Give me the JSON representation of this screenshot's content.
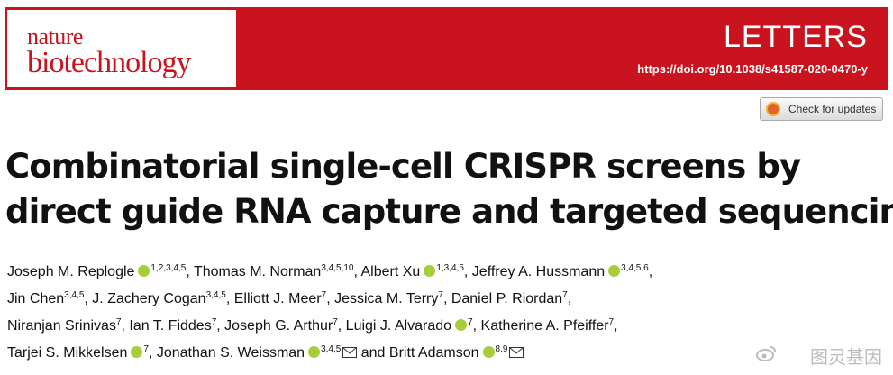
{
  "header": {
    "journal_line1": "nature",
    "journal_line2": "biotechnology",
    "section": "LETTERS",
    "doi": "https://doi.org/10.1038/s41587-020-0470-y"
  },
  "check_button": "Check for updates",
  "title": {
    "line1": "Combinatorial single-cell CRISPR screens by",
    "line2": "direct guide RNA capture and targeted sequencing"
  },
  "authors": [
    {
      "name": "Joseph M. Replogle",
      "orcid": true,
      "affil": "1,2,3,4,5",
      "sep": ", "
    },
    {
      "name": "Thomas M. Norman",
      "orcid": false,
      "affil": "3,4,5,10",
      "sep": ", "
    },
    {
      "name": "Albert Xu",
      "orcid": true,
      "affil": "1,3,4,5",
      "sep": ", "
    },
    {
      "name": "Jeffrey A. Hussmann",
      "orcid": true,
      "affil": "3,4,5,6",
      "sep": ","
    },
    {
      "name": "Jin Chen",
      "orcid": false,
      "affil": "3,4,5",
      "sep": ", "
    },
    {
      "name": "J. Zachery Cogan",
      "orcid": false,
      "affil": "3,4,5",
      "sep": ", "
    },
    {
      "name": "Elliott J. Meer",
      "orcid": false,
      "affil": "7",
      "sep": ", "
    },
    {
      "name": "Jessica M. Terry",
      "orcid": false,
      "affil": "7",
      "sep": ", "
    },
    {
      "name": "Daniel P. Riordan",
      "orcid": false,
      "affil": "7",
      "sep": ","
    },
    {
      "name": "Niranjan Srinivas",
      "orcid": false,
      "affil": "7",
      "sep": ", "
    },
    {
      "name": "Ian T. Fiddes",
      "orcid": false,
      "affil": "7",
      "sep": ", "
    },
    {
      "name": "Joseph G. Arthur",
      "orcid": false,
      "affil": "7",
      "sep": ", "
    },
    {
      "name": "Luigi J. Alvarado",
      "orcid": true,
      "affil": "7",
      "sep": ", "
    },
    {
      "name": "Katherine A. Pfeiffer",
      "orcid": false,
      "affil": "7",
      "sep": ","
    },
    {
      "name": "Tarjei S. Mikkelsen",
      "orcid": true,
      "affil": "7",
      "sep": ", "
    },
    {
      "name": "Jonathan S. Weissman",
      "orcid": true,
      "affil": "3,4,5",
      "email": true,
      "sep": " and "
    },
    {
      "name": "Britt Adamson",
      "orcid": true,
      "affil": "8,9",
      "email": true
    }
  ],
  "watermark": "图灵基因"
}
